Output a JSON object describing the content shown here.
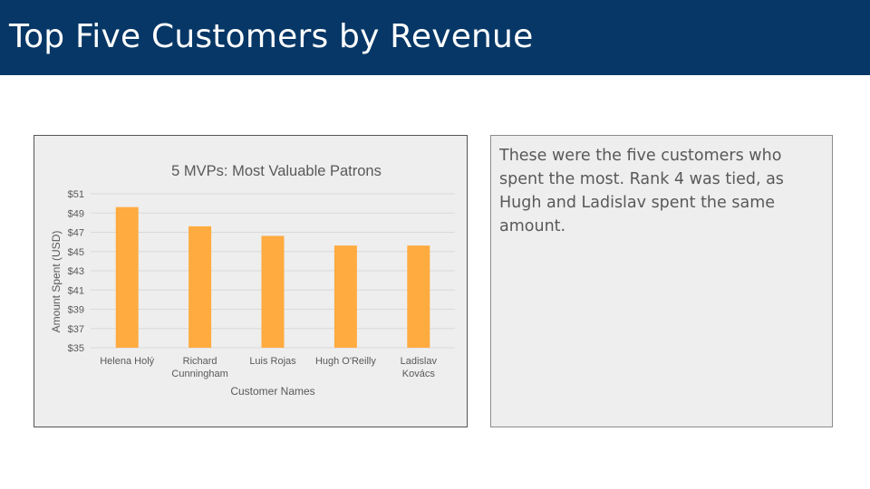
{
  "slide": {
    "title": "Top Five Customers by Revenue",
    "description": "These were the five customers who spent the most. Rank 4 was tied, as Hugh and Ladislav spent the same amount."
  },
  "chart_data": {
    "type": "bar",
    "title": "5 MVPs: Most Valuable Patrons",
    "xlabel": "Customer Names",
    "ylabel": "Amount Spent (USD)",
    "categories": [
      "Helena Holý",
      "Richard Cunningham",
      "Luis Rojas",
      "Hugh O'Reilly",
      "Ladislav Kovács"
    ],
    "category_lines": [
      [
        "Helena Holý"
      ],
      [
        "Richard",
        "Cunningham"
      ],
      [
        "Luis Rojas"
      ],
      [
        "Hugh O'Reilly"
      ],
      [
        "Ladislav",
        "Kovács"
      ]
    ],
    "values": [
      49.62,
      47.62,
      46.62,
      45.62,
      45.62
    ],
    "ylim": [
      35,
      51
    ],
    "yticks": [
      35,
      37,
      39,
      41,
      43,
      45,
      47,
      49,
      51
    ],
    "ytick_labels": [
      "$35",
      "$37",
      "$39",
      "$41",
      "$43",
      "$45",
      "$47",
      "$49",
      "$51"
    ],
    "grid": true,
    "legend": "none",
    "bar_color": "#FFAB40",
    "grid_color": "#D9D9D9",
    "text_color": "#595959"
  }
}
